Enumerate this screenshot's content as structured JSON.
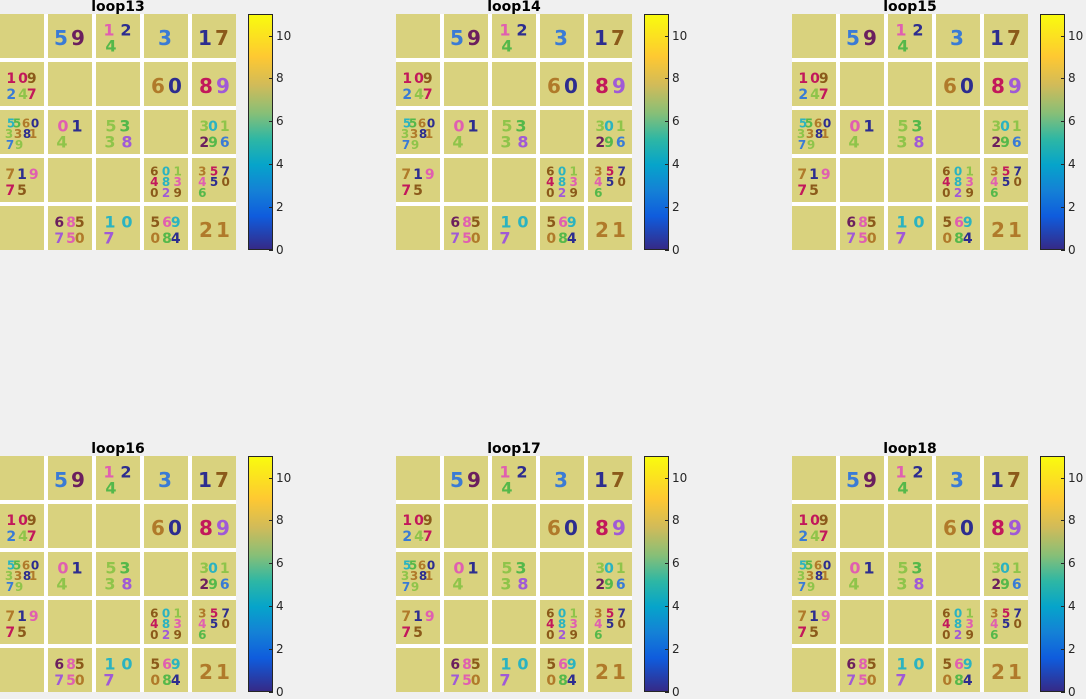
{
  "chart_data": [
    {
      "type": "heatmap",
      "title": "loop13",
      "colorbar": {
        "min": 0,
        "max": 11,
        "ticks": [
          "0",
          "2",
          "4",
          "6",
          "8",
          "10"
        ],
        "colormap": "parula"
      },
      "grid": {
        "rows": 5,
        "cols": 5,
        "cells": [
          [
            [],
            [
              5,
              9
            ],
            [
              1,
              2,
              4
            ],
            [
              3
            ],
            [
              1,
              7
            ]
          ],
          [
            [
              1,
              0,
              9,
              2,
              4,
              7
            ],
            [],
            [],
            [
              6,
              0
            ],
            [
              8,
              9
            ]
          ],
          [
            [
              5,
              5,
              6,
              0,
              3,
              3,
              8,
              1,
              7,
              9
            ],
            [
              0,
              1,
              4
            ],
            [
              5,
              3,
              3,
              8
            ],
            [],
            [
              3,
              0,
              1,
              2,
              9,
              6
            ]
          ],
          [
            [
              7,
              1,
              9,
              7,
              5
            ],
            [],
            [],
            [
              6,
              0,
              1,
              4,
              8,
              3,
              0,
              2,
              9
            ],
            [
              3,
              5,
              7,
              4,
              5,
              0,
              6
            ]
          ],
          [
            [],
            [
              6,
              8,
              5,
              7,
              5,
              0
            ],
            [
              1,
              0,
              7
            ],
            [
              5,
              6,
              9,
              0,
              8,
              4
            ],
            [
              2,
              1
            ]
          ]
        ]
      }
    },
    {
      "type": "heatmap",
      "title": "loop14",
      "colorbar": {
        "min": 0,
        "max": 11,
        "ticks": [
          "0",
          "2",
          "4",
          "6",
          "8",
          "10"
        ],
        "colormap": "parula"
      },
      "grid": {
        "rows": 5,
        "cols": 5,
        "cells": [
          [
            [],
            [
              5,
              9
            ],
            [
              1,
              2,
              4
            ],
            [
              3
            ],
            [
              1,
              7
            ]
          ],
          [
            [
              1,
              0,
              9,
              2,
              4,
              7
            ],
            [],
            [],
            [
              6,
              0
            ],
            [
              8,
              9
            ]
          ],
          [
            [
              5,
              5,
              6,
              0,
              3,
              3,
              8,
              1,
              7,
              9
            ],
            [
              0,
              1,
              4
            ],
            [
              5,
              3,
              3,
              8
            ],
            [],
            [
              3,
              0,
              1,
              2,
              9,
              6
            ]
          ],
          [
            [
              7,
              1,
              9,
              7,
              5
            ],
            [],
            [],
            [
              6,
              0,
              1,
              4,
              8,
              3,
              0,
              2,
              9
            ],
            [
              3,
              5,
              7,
              4,
              5,
              0,
              6
            ]
          ],
          [
            [],
            [
              6,
              8,
              5,
              7,
              5,
              0
            ],
            [
              1,
              0,
              7
            ],
            [
              5,
              6,
              9,
              0,
              8,
              4
            ],
            [
              2,
              1
            ]
          ]
        ]
      }
    },
    {
      "type": "heatmap",
      "title": "loop15",
      "colorbar": {
        "min": 0,
        "max": 11,
        "ticks": [
          "0",
          "2",
          "4",
          "6",
          "8",
          "10"
        ],
        "colormap": "parula"
      },
      "grid": {
        "rows": 5,
        "cols": 5,
        "cells": [
          [
            [],
            [
              5,
              9
            ],
            [
              1,
              2,
              4
            ],
            [
              3
            ],
            [
              1,
              7
            ]
          ],
          [
            [
              1,
              0,
              9,
              2,
              4,
              7
            ],
            [],
            [],
            [
              6,
              0
            ],
            [
              8,
              9
            ]
          ],
          [
            [
              5,
              5,
              6,
              0,
              3,
              3,
              8,
              1,
              7,
              9
            ],
            [
              0,
              1,
              4
            ],
            [
              5,
              3,
              3,
              8
            ],
            [],
            [
              3,
              0,
              1,
              2,
              9,
              6
            ]
          ],
          [
            [
              7,
              1,
              9,
              7,
              5
            ],
            [],
            [],
            [
              6,
              0,
              1,
              4,
              8,
              3,
              0,
              2,
              9
            ],
            [
              3,
              5,
              7,
              4,
              5,
              0,
              6
            ]
          ],
          [
            [],
            [
              6,
              8,
              5,
              7,
              5,
              0
            ],
            [
              1,
              0,
              7
            ],
            [
              5,
              6,
              9,
              0,
              8,
              4
            ],
            [
              2,
              1
            ]
          ]
        ]
      }
    },
    {
      "type": "heatmap",
      "title": "loop16",
      "colorbar": {
        "min": 0,
        "max": 11,
        "ticks": [
          "0",
          "2",
          "4",
          "6",
          "8",
          "10"
        ],
        "colormap": "parula"
      },
      "grid": {
        "rows": 5,
        "cols": 5,
        "cells": [
          [
            [],
            [
              5,
              9
            ],
            [
              1,
              2,
              4
            ],
            [
              3
            ],
            [
              1,
              7
            ]
          ],
          [
            [
              1,
              0,
              9,
              2,
              4,
              7
            ],
            [],
            [],
            [
              6,
              0
            ],
            [
              8,
              9
            ]
          ],
          [
            [
              5,
              5,
              6,
              0,
              3,
              3,
              8,
              1,
              7,
              9
            ],
            [
              0,
              1,
              4
            ],
            [
              5,
              3,
              3,
              8
            ],
            [],
            [
              3,
              0,
              1,
              2,
              9,
              6
            ]
          ],
          [
            [
              7,
              1,
              9,
              7,
              5
            ],
            [],
            [],
            [
              6,
              0,
              1,
              4,
              8,
              3,
              0,
              2,
              9
            ],
            [
              3,
              5,
              7,
              4,
              5,
              0,
              6
            ]
          ],
          [
            [],
            [
              6,
              8,
              5,
              7,
              5,
              0
            ],
            [
              1,
              0,
              7
            ],
            [
              5,
              6,
              9,
              0,
              8,
              4
            ],
            [
              2,
              1
            ]
          ]
        ]
      }
    },
    {
      "type": "heatmap",
      "title": "loop17",
      "colorbar": {
        "min": 0,
        "max": 11,
        "ticks": [
          "0",
          "2",
          "4",
          "6",
          "8",
          "10"
        ],
        "colormap": "parula"
      },
      "grid": {
        "rows": 5,
        "cols": 5,
        "cells": [
          [
            [],
            [
              5,
              9
            ],
            [
              1,
              2,
              4
            ],
            [
              3
            ],
            [
              1,
              7
            ]
          ],
          [
            [
              1,
              0,
              9,
              2,
              4,
              7
            ],
            [],
            [],
            [
              6,
              0
            ],
            [
              8,
              9
            ]
          ],
          [
            [
              5,
              5,
              6,
              0,
              3,
              3,
              8,
              1,
              7,
              9
            ],
            [
              0,
              1,
              4
            ],
            [
              5,
              3,
              3,
              8
            ],
            [],
            [
              3,
              0,
              1,
              2,
              9,
              6
            ]
          ],
          [
            [
              7,
              1,
              9,
              7,
              5
            ],
            [],
            [],
            [
              6,
              0,
              1,
              4,
              8,
              3,
              0,
              2,
              9
            ],
            [
              3,
              5,
              7,
              4,
              5,
              0,
              6
            ]
          ],
          [
            [],
            [
              6,
              8,
              5,
              7,
              5,
              0
            ],
            [
              1,
              0,
              7
            ],
            [
              5,
              6,
              9,
              0,
              8,
              4
            ],
            [
              2,
              1
            ]
          ]
        ]
      }
    },
    {
      "type": "heatmap",
      "title": "loop18",
      "colorbar": {
        "min": 0,
        "max": 11,
        "ticks": [
          "0",
          "2",
          "4",
          "6",
          "8",
          "10"
        ],
        "colormap": "parula"
      },
      "grid": {
        "rows": 5,
        "cols": 5,
        "cells": [
          [
            [],
            [
              5,
              9
            ],
            [
              1,
              2,
              4
            ],
            [
              3
            ],
            [
              1,
              7
            ]
          ],
          [
            [
              1,
              0,
              9,
              2,
              4,
              7
            ],
            [],
            [],
            [
              6,
              0
            ],
            [
              8,
              9
            ]
          ],
          [
            [
              5,
              5,
              6,
              0,
              3,
              3,
              8,
              1,
              7,
              9
            ],
            [
              0,
              1,
              4
            ],
            [
              5,
              3,
              3,
              8
            ],
            [],
            [
              3,
              0,
              1,
              2,
              9,
              6
            ]
          ],
          [
            [
              7,
              1,
              9,
              7,
              5
            ],
            [],
            [],
            [
              6,
              0,
              1,
              4,
              8,
              3,
              0,
              2,
              9
            ],
            [
              3,
              5,
              7,
              4,
              5,
              0,
              6
            ]
          ],
          [
            [],
            [
              6,
              8,
              5,
              7,
              5,
              0
            ],
            [
              1,
              0,
              7
            ],
            [
              5,
              6,
              9,
              0,
              8,
              4
            ],
            [
              2,
              1
            ]
          ]
        ]
      }
    }
  ],
  "colors": {
    "background": "#f0f0f0",
    "cell": "#d9d27e",
    "digit_palette": [
      "#6b1f5e",
      "#8b5a1a",
      "#c2185b",
      "#e05fb0",
      "#a05ad6",
      "#2d2d8f",
      "#3a7bd5",
      "#2bb3c0",
      "#55b84a",
      "#8fc44a",
      "#b07a2a"
    ]
  }
}
